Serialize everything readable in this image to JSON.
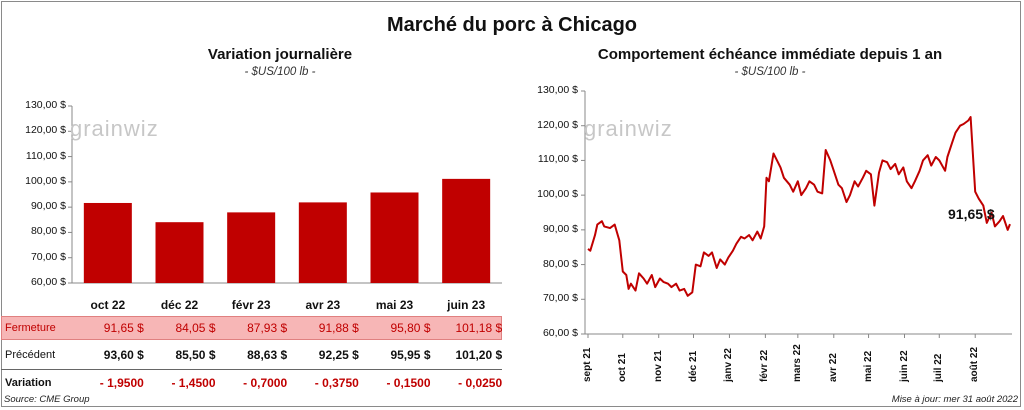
{
  "title": "Marché du porc à Chicago",
  "left_panel": {
    "title": "Variation  journalière",
    "subtitle": "- $US/100 lb -"
  },
  "right_panel": {
    "title": "Comportement  échéance immédiate depuis 1 an",
    "subtitle": "- $US/100 lb -"
  },
  "watermark": "grainwiz",
  "table": {
    "rows": [
      {
        "label": "Fermeture",
        "values": [
          "91,65  $",
          "84,05  $",
          "87,93  $",
          "91,88  $",
          "95,80  $",
          "101,18  $"
        ],
        "color": "#c00000",
        "bg": "#f7b6b6"
      },
      {
        "label": "Précédent",
        "values": [
          "93,60  $",
          "85,50  $",
          "88,63  $",
          "92,25  $",
          "95,95  $",
          "101,20  $"
        ],
        "color": "#111111",
        "bg": "#ffffff"
      },
      {
        "label": "Variation",
        "values": [
          "- 1,9500",
          "- 1,4500",
          "- 0,7000",
          "- 0,3750",
          "- 0,1500",
          "- 0,0250"
        ],
        "color": "#c00000",
        "bg": "#ffffff"
      }
    ]
  },
  "footer": {
    "source": "Source: CME Group",
    "updated": "Mise à jour: mer 31 août 2022"
  },
  "colors": {
    "bar": "#c00000",
    "line": "#c00000",
    "fermeture_bg": "#f7b6b6"
  },
  "chart_data": [
    {
      "type": "bar",
      "title": "Variation  journalière",
      "subtitle": "- $US/100 lb -",
      "categories": [
        "oct 22",
        "déc 22",
        "févr 23",
        "avr 23",
        "mai 23",
        "juin 23"
      ],
      "values": [
        91.65,
        84.05,
        87.93,
        91.88,
        95.8,
        101.18
      ],
      "ylim": [
        60,
        130
      ],
      "yticks": [
        "60,00 $",
        "70,00 $",
        "80,00 $",
        "90,00 $",
        "100,00 $",
        "110,00 $",
        "120,00 $",
        "130,00 $"
      ],
      "grid": false,
      "legend": "none"
    },
    {
      "type": "line",
      "title": "Comportement  échéance immédiate depuis 1 an",
      "subtitle": "- $US/100 lb -",
      "ylim": [
        60,
        130
      ],
      "yticks": [
        "60,00 $",
        "70,00 $",
        "80,00 $",
        "90,00 $",
        "100,00 $",
        "110,00 $",
        "120,00 $",
        "130,00 $"
      ],
      "xticks": [
        "sept 21",
        "oct 21",
        "nov 21",
        "déc 21",
        "janv 22",
        "févr 22",
        "mars 22",
        "avr 22",
        "mai 22",
        "juin 22",
        "juil 22",
        "août 22"
      ],
      "last_label": "91,65 $",
      "grid": false,
      "legend": "none",
      "x": [
        "2021-09-01",
        "2021-09-03",
        "2021-09-07",
        "2021-09-09",
        "2021-09-13",
        "2021-09-15",
        "2021-09-20",
        "2021-09-24",
        "2021-09-28",
        "2021-10-01",
        "2021-10-04",
        "2021-10-06",
        "2021-10-08",
        "2021-10-12",
        "2021-10-15",
        "2021-10-19",
        "2021-10-22",
        "2021-10-26",
        "2021-10-29",
        "2021-11-02",
        "2021-11-05",
        "2021-11-09",
        "2021-11-12",
        "2021-11-16",
        "2021-11-19",
        "2021-11-23",
        "2021-11-26",
        "2021-11-30",
        "2021-12-03",
        "2021-12-07",
        "2021-12-10",
        "2021-12-14",
        "2021-12-17",
        "2021-12-21",
        "2021-12-24",
        "2021-12-28",
        "2021-12-31",
        "2022-01-04",
        "2022-01-07",
        "2022-01-11",
        "2022-01-14",
        "2022-01-18",
        "2022-01-21",
        "2022-01-25",
        "2022-01-28",
        "2022-01-31",
        "2022-02-02",
        "2022-02-04",
        "2022-02-08",
        "2022-02-11",
        "2022-02-14",
        "2022-02-17",
        "2022-02-22",
        "2022-02-25",
        "2022-03-01",
        "2022-03-04",
        "2022-03-08",
        "2022-03-11",
        "2022-03-15",
        "2022-03-18",
        "2022-03-22",
        "2022-03-25",
        "2022-03-29",
        "2022-04-01",
        "2022-04-05",
        "2022-04-08",
        "2022-04-12",
        "2022-04-15",
        "2022-04-19",
        "2022-04-22",
        "2022-04-26",
        "2022-04-29",
        "2022-05-03",
        "2022-05-06",
        "2022-05-10",
        "2022-05-13",
        "2022-05-17",
        "2022-05-20",
        "2022-05-24",
        "2022-05-27",
        "2022-05-31",
        "2022-06-03",
        "2022-06-07",
        "2022-06-10",
        "2022-06-14",
        "2022-06-17",
        "2022-06-21",
        "2022-06-24",
        "2022-06-28",
        "2022-07-01",
        "2022-07-06",
        "2022-07-08",
        "2022-07-12",
        "2022-07-15",
        "2022-07-19",
        "2022-07-22",
        "2022-07-26",
        "2022-07-28",
        "2022-08-01",
        "2022-08-04",
        "2022-08-08",
        "2022-08-11",
        "2022-08-15",
        "2022-08-18",
        "2022-08-22",
        "2022-08-25",
        "2022-08-29",
        "2022-08-31"
      ],
      "y": [
        84.5,
        84.0,
        88.5,
        91.5,
        92.5,
        91.0,
        90.5,
        91.5,
        87.0,
        78.0,
        77.0,
        73.0,
        74.5,
        72.5,
        77.5,
        76.0,
        74.5,
        77.0,
        73.5,
        76.0,
        75.0,
        74.5,
        73.5,
        74.5,
        72.5,
        73.0,
        71.0,
        72.0,
        80.0,
        79.5,
        83.5,
        82.5,
        83.5,
        79.0,
        81.5,
        80.0,
        82.0,
        84.0,
        86.0,
        88.0,
        87.5,
        88.5,
        87.0,
        89.5,
        87.5,
        91.0,
        105.0,
        104.0,
        112.0,
        110.0,
        108.0,
        105.0,
        103.0,
        101.0,
        104.0,
        100.0,
        102.0,
        104.0,
        103.0,
        101.0,
        100.5,
        113.0,
        110.0,
        107.0,
        103.0,
        102.0,
        98.0,
        100.0,
        104.0,
        102.5,
        105.0,
        107.0,
        106.0,
        97.0,
        106.5,
        110.0,
        109.5,
        107.5,
        109.0,
        106.0,
        108.0,
        104.0,
        102.0,
        104.0,
        107.0,
        110.0,
        111.5,
        108.5,
        111.0,
        110.0,
        107.0,
        111.0,
        115.0,
        118.0,
        120.0,
        120.5,
        121.5,
        122.5,
        101.0,
        99.0,
        97.0,
        92.0,
        95.0,
        91.0,
        92.5,
        94.0,
        90.0,
        91.65
      ]
    }
  ]
}
